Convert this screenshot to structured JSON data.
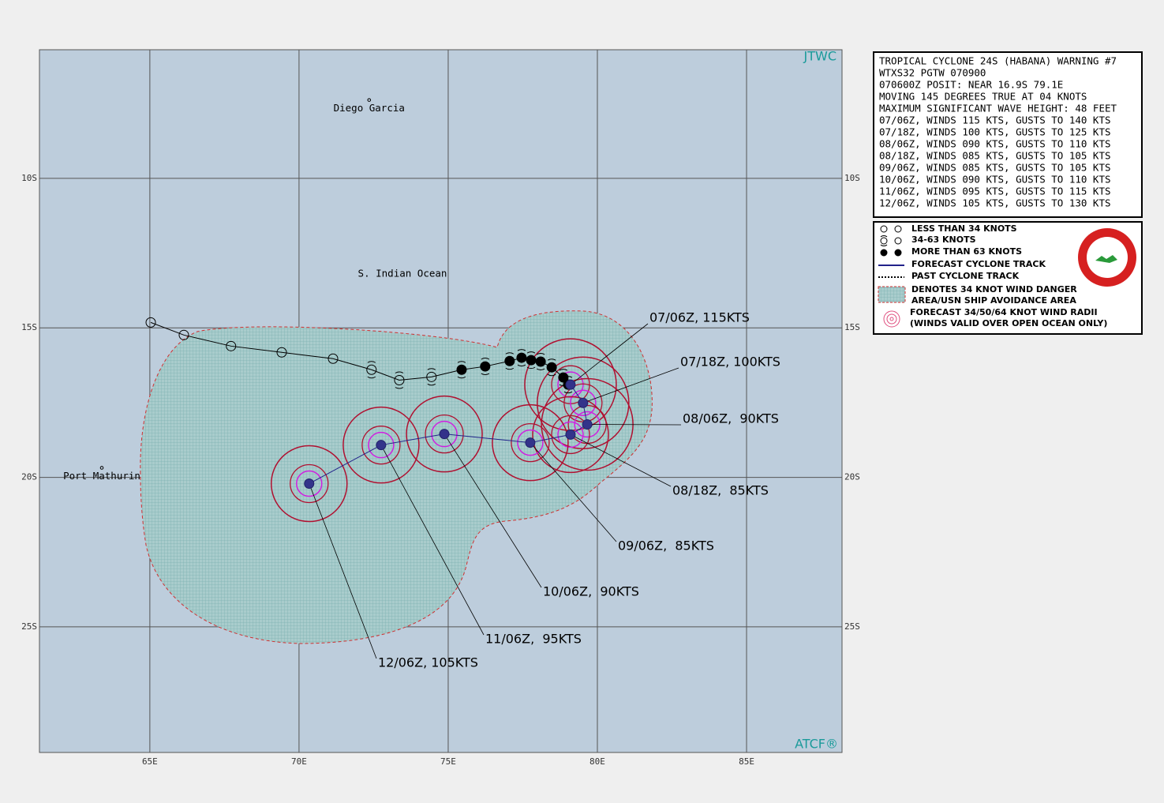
{
  "map": {
    "corner_label": "JTWC",
    "credit": "ATCF®",
    "xlim": [
      61.3,
      88.2
    ],
    "ylim": [
      -29.2,
      -5.7
    ],
    "xticks": [
      {
        "value": 65,
        "label": "65E"
      },
      {
        "value": 70,
        "label": "70E"
      },
      {
        "value": 75,
        "label": "75E"
      },
      {
        "value": 80,
        "label": "80E"
      },
      {
        "value": 85,
        "label": "85E"
      }
    ],
    "yticks": [
      {
        "value": -10,
        "label": "10S"
      },
      {
        "value": -15,
        "label": "15S"
      },
      {
        "value": -20,
        "label": "20S"
      },
      {
        "value": -25,
        "label": "25S"
      }
    ],
    "ocean_label": "S. Indian Ocean",
    "places": [
      {
        "label": "Diego Garcia",
        "lon": 72.35,
        "lat": -7.38
      },
      {
        "label": "Port Mathurin",
        "lon": 63.39,
        "lat": -19.68
      }
    ],
    "past_track": [
      {
        "lon": 65.03,
        "lat": -14.82,
        "legend_item": 0
      },
      {
        "lon": 66.14,
        "lat": -15.24,
        "legend_item": 0
      },
      {
        "lon": 67.72,
        "lat": -15.61,
        "legend_item": 0
      },
      {
        "lon": 69.42,
        "lat": -15.82,
        "legend_item": 0
      },
      {
        "lon": 71.14,
        "lat": -16.03,
        "legend_item": 0
      },
      {
        "lon": 72.43,
        "lat": -16.4,
        "legend_item": 1
      },
      {
        "lon": 73.36,
        "lat": -16.75,
        "legend_item": 1
      },
      {
        "lon": 74.44,
        "lat": -16.64,
        "legend_item": 1
      },
      {
        "lon": 75.45,
        "lat": -16.4,
        "legend_item": 2
      },
      {
        "lon": 76.24,
        "lat": -16.29,
        "legend_item": 2
      },
      {
        "lon": 77.06,
        "lat": -16.11,
        "legend_item": 2
      },
      {
        "lon": 77.46,
        "lat": -16.0,
        "legend_item": 2
      },
      {
        "lon": 77.78,
        "lat": -16.08,
        "legend_item": 2
      },
      {
        "lon": 78.1,
        "lat": -16.13,
        "legend_item": 2
      },
      {
        "lon": 78.47,
        "lat": -16.32,
        "legend_item": 2
      },
      {
        "lon": 78.86,
        "lat": -16.66,
        "legend_item": 2
      },
      {
        "lon": 79.02,
        "lat": -16.9,
        "legend_item": 2
      }
    ],
    "forecast_track": [
      {
        "lon": 79.1,
        "lat": -16.9,
        "label": "07/06Z, 115KTS"
      },
      {
        "lon": 79.52,
        "lat": -17.51,
        "label": "07/18Z, 100KTS"
      },
      {
        "lon": 79.66,
        "lat": -18.23,
        "label": "08/06Z,  90KTS"
      },
      {
        "lon": 79.1,
        "lat": -18.57,
        "label": "08/18Z,  85KTS"
      },
      {
        "lon": 77.75,
        "lat": -18.84,
        "label": "09/06Z,  85KTS"
      },
      {
        "lon": 74.87,
        "lat": -18.55,
        "label": "10/06Z,  90KTS"
      },
      {
        "lon": 72.75,
        "lat": -18.92,
        "label": "11/06Z,  95KTS"
      },
      {
        "lon": 70.34,
        "lat": -20.21,
        "label": "12/06Z, 105KTS"
      }
    ]
  },
  "warning": {
    "lines": [
      "TROPICAL CYCLONE 24S (HABANA) WARNING #7",
      "WTXS32 PGTW 070900",
      "070600Z POSIT: NEAR 16.9S 79.1E",
      "MOVING 145 DEGREES TRUE AT 04 KNOTS",
      "MAXIMUM SIGNIFICANT WAVE HEIGHT: 48 FEET",
      "07/06Z, WINDS 115 KTS, GUSTS TO 140 KTS",
      "07/18Z, WINDS 100 KTS, GUSTS TO 125 KTS",
      "08/06Z, WINDS 090 KTS, GUSTS TO 110 KTS",
      "08/18Z, WINDS 085 KTS, GUSTS TO 105 KTS",
      "09/06Z, WINDS 085 KTS, GUSTS TO 105 KTS",
      "10/06Z, WINDS 090 KTS, GUSTS TO 110 KTS",
      "11/06Z, WINDS 095 KTS, GUSTS TO 115 KTS",
      "12/06Z, WINDS 105 KTS, GUSTS TO 130 KTS"
    ]
  },
  "legend": {
    "items": [
      [
        "LESS THAN 34 KNOTS"
      ],
      [
        "34-63 KNOTS"
      ],
      [
        "MORE THAN 63 KNOTS"
      ],
      [
        "FORECAST CYCLONE TRACK"
      ],
      [
        "PAST CYCLONE TRACK"
      ],
      [
        "DENOTES 34 KNOT WIND DANGER",
        "AREA/USN SHIP AVOIDANCE AREA"
      ],
      [
        "FORECAST 34/50/64 KNOT WIND RADII",
        "(WINDS VALID OVER OPEN OCEAN ONLY)"
      ]
    ]
  }
}
